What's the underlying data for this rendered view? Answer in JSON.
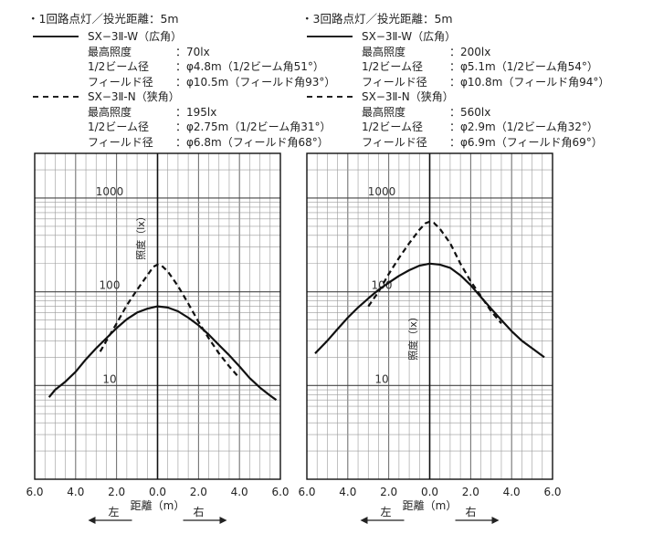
{
  "chart_data": [
    {
      "type": "line",
      "title": "・1回路点灯／投光距離：5m",
      "ylabel": "照度（lx）",
      "xlabel": "距離（m）",
      "x_tick_labels": [
        "6.0",
        "4.0",
        "2.0",
        "0.0",
        "2.0",
        "4.0",
        "6.0"
      ],
      "xlim": [
        -6,
        6
      ],
      "yscale": "log",
      "ylim": [
        1,
        3000
      ],
      "y_tick_labels": [
        "10",
        "100",
        "1000"
      ],
      "y_tick_values": [
        10,
        100,
        1000
      ],
      "direction_left": "左",
      "direction_right": "右",
      "grid": true,
      "legend": [
        {
          "style": "solid",
          "name": "SX−3Ⅱ-W（広角）",
          "rows": [
            {
              "key": "最高照度",
              "value": "：70lx"
            },
            {
              "key": "1/2ビーム径",
              "value": "：φ4.8m（1/2ビーム角51°）"
            },
            {
              "key": "フィールド径",
              "value": "：φ10.5m（フィールド角93°）"
            }
          ]
        },
        {
          "style": "dashed",
          "name": "SX−3Ⅱ-N（狭角）",
          "rows": [
            {
              "key": "最高照度",
              "value": "：195lx"
            },
            {
              "key": "1/2ビーム径",
              "value": "：φ2.75m（1/2ビーム角31°）"
            },
            {
              "key": "フィールド径",
              "value": "：φ6.8m（フィールド角68°）"
            }
          ]
        }
      ],
      "series": [
        {
          "name": "SX−3Ⅱ-W（広角）",
          "style": "solid",
          "x": [
            -5.3,
            -5.0,
            -4.5,
            -4.0,
            -3.5,
            -3.0,
            -2.5,
            -2.0,
            -1.5,
            -1.0,
            -0.5,
            0.0,
            0.5,
            1.0,
            1.5,
            2.0,
            2.5,
            3.0,
            3.5,
            4.0,
            4.5,
            5.0,
            5.5,
            5.8
          ],
          "y": [
            7.5,
            9.0,
            11,
            14,
            19,
            25,
            32,
            41,
            51,
            60,
            66,
            70,
            68,
            62,
            53,
            44,
            35,
            27,
            21,
            16,
            12,
            9.5,
            7.8,
            7.0
          ]
        },
        {
          "name": "SX−3Ⅱ-N（狭角）",
          "style": "dashed",
          "x": [
            -2.8,
            -2.5,
            -2.0,
            -1.5,
            -1.0,
            -0.5,
            -0.2,
            0.0,
            0.2,
            0.5,
            1.0,
            1.5,
            2.0,
            2.5,
            3.0,
            3.5,
            4.0
          ],
          "y": [
            23,
            30,
            46,
            72,
            105,
            150,
            185,
            195,
            190,
            165,
            115,
            75,
            48,
            32,
            22,
            16,
            12
          ]
        }
      ]
    },
    {
      "type": "line",
      "title": "・3回路点灯／投光距離：5m",
      "ylabel": "照度（lx）",
      "xlabel": "距離（m）",
      "x_tick_labels": [
        "6.0",
        "4.0",
        "2.0",
        "0.0",
        "2.0",
        "4.0",
        "6.0"
      ],
      "xlim": [
        -6,
        6
      ],
      "yscale": "log",
      "ylim": [
        1,
        3000
      ],
      "y_tick_labels": [
        "10",
        "100",
        "1000"
      ],
      "y_tick_values": [
        10,
        100,
        1000
      ],
      "direction_left": "左",
      "direction_right": "右",
      "grid": true,
      "legend": [
        {
          "style": "solid",
          "name": "SX−3Ⅱ-W（広角）",
          "rows": [
            {
              "key": "最高照度",
              "value": "：200lx"
            },
            {
              "key": "1/2ビーム径",
              "value": "：φ5.1m（1/2ビーム角54°）"
            },
            {
              "key": "フィールド径",
              "value": "：φ10.8m（フィールド角94°）"
            }
          ]
        },
        {
          "style": "dashed",
          "name": "SX−3Ⅱ-N（狭角）",
          "rows": [
            {
              "key": "最高照度",
              "value": "：560lx"
            },
            {
              "key": "1/2ビーム径",
              "value": "：φ2.9m（1/2ビーム角32°）"
            },
            {
              "key": "フィールド径",
              "value": "：φ6.9m（フィールド角69°）"
            }
          ]
        }
      ],
      "series": [
        {
          "name": "SX−3Ⅱ-W（広角）",
          "style": "solid",
          "x": [
            -5.6,
            -5.0,
            -4.5,
            -4.0,
            -3.5,
            -3.0,
            -2.5,
            -2.0,
            -1.5,
            -1.0,
            -0.5,
            0.0,
            0.5,
            1.0,
            1.5,
            2.0,
            2.5,
            3.0,
            3.5,
            4.0,
            4.5,
            5.0,
            5.6
          ],
          "y": [
            22,
            30,
            40,
            53,
            68,
            85,
            105,
            125,
            148,
            170,
            190,
            200,
            195,
            180,
            150,
            118,
            88,
            66,
            50,
            38,
            30,
            25,
            20
          ]
        },
        {
          "name": "SX−3Ⅱ-N（狭角）",
          "style": "dashed",
          "x": [
            -3.0,
            -2.5,
            -2.0,
            -1.5,
            -1.0,
            -0.5,
            -0.2,
            0.0,
            0.2,
            0.5,
            1.0,
            1.5,
            2.0,
            2.5,
            3.0,
            3.5
          ],
          "y": [
            70,
            100,
            155,
            230,
            330,
            460,
            540,
            560,
            545,
            470,
            330,
            200,
            130,
            90,
            62,
            46
          ]
        }
      ]
    }
  ]
}
